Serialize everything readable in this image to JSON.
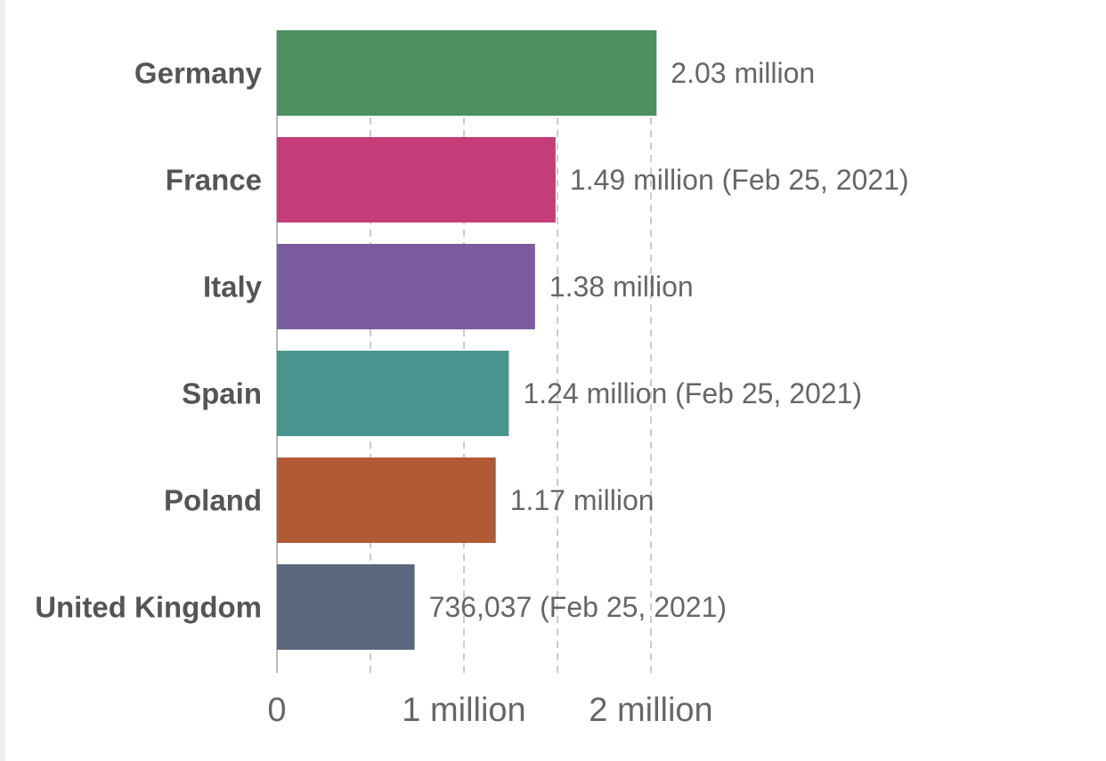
{
  "chart_data": {
    "type": "bar",
    "orientation": "horizontal",
    "categories": [
      "Germany",
      "France",
      "Italy",
      "Spain",
      "Poland",
      "United Kingdom"
    ],
    "values": [
      2030000,
      1490000,
      1380000,
      1240000,
      1170000,
      736037
    ],
    "value_labels": [
      "2.03 million",
      "1.49 million (Feb 25, 2021)",
      "1.38 million",
      "1.24 million (Feb 25, 2021)",
      "1.17 million",
      "736,037 (Feb 25, 2021)"
    ],
    "colors": [
      "#4c8f61",
      "#c43d78",
      "#7b5c9e",
      "#4a9490",
      "#b05b36",
      "#5a677d"
    ],
    "xticks": [
      0,
      1000000,
      2000000
    ],
    "xtick_labels": [
      "0",
      "1 million",
      "2 million"
    ],
    "gridlines": [
      500000,
      1000000,
      1500000,
      2000000
    ],
    "xlim": [
      0,
      2000000
    ],
    "grid": true
  }
}
